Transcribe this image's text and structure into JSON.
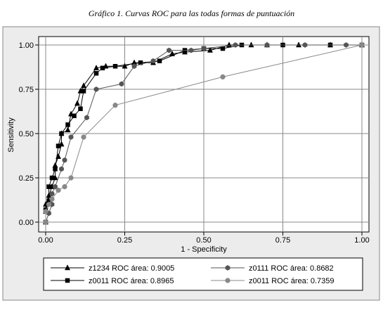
{
  "caption": "Gráfico 1. Curvas ROC para las todas formas de puntuación",
  "chart_data": {
    "type": "line",
    "xlabel": "1 - Specificity",
    "ylabel": "Sensitivity",
    "xlim": [
      0,
      1
    ],
    "ylim": [
      0,
      1
    ],
    "x_ticks": [
      "0.00",
      "0.25",
      "0.50",
      "0.75",
      "1.00"
    ],
    "y_ticks": [
      "0.00",
      "0.25",
      "0.50",
      "0.75",
      "1.00"
    ],
    "grid": true,
    "legend_position": "bottom",
    "series": [
      {
        "name": "z1234 ROC área: 0.9005",
        "color": "#000000",
        "marker": "triangle",
        "points": [
          [
            0,
            0
          ],
          [
            0,
            0.06
          ],
          [
            0,
            0.1
          ],
          [
            0.01,
            0.15
          ],
          [
            0.02,
            0.2
          ],
          [
            0.03,
            0.25
          ],
          [
            0.03,
            0.32
          ],
          [
            0.04,
            0.37
          ],
          [
            0.05,
            0.44
          ],
          [
            0.05,
            0.5
          ],
          [
            0.07,
            0.52
          ],
          [
            0.08,
            0.61
          ],
          [
            0.1,
            0.67
          ],
          [
            0.11,
            0.74
          ],
          [
            0.12,
            0.77
          ],
          [
            0.16,
            0.87
          ],
          [
            0.19,
            0.88
          ],
          [
            0.25,
            0.88
          ],
          [
            0.28,
            0.9
          ],
          [
            0.34,
            0.9
          ],
          [
            0.4,
            0.95
          ],
          [
            0.44,
            0.96
          ],
          [
            0.52,
            0.97
          ],
          [
            0.58,
            1
          ],
          [
            0.65,
            1
          ],
          [
            0.7,
            1
          ],
          [
            0.8,
            1
          ],
          [
            0.9,
            1
          ],
          [
            1,
            1
          ]
        ]
      },
      {
        "name": "z0011 ROC área: 0.8965",
        "color": "#000000",
        "marker": "square",
        "points": [
          [
            0,
            0
          ],
          [
            0,
            0.07
          ],
          [
            0.01,
            0.12
          ],
          [
            0.01,
            0.2
          ],
          [
            0.02,
            0.25
          ],
          [
            0.03,
            0.3
          ],
          [
            0.04,
            0.43
          ],
          [
            0.05,
            0.5
          ],
          [
            0.07,
            0.55
          ],
          [
            0.09,
            0.6
          ],
          [
            0.11,
            0.64
          ],
          [
            0.12,
            0.74
          ],
          [
            0.16,
            0.84
          ],
          [
            0.18,
            0.87
          ],
          [
            0.22,
            0.88
          ],
          [
            0.3,
            0.9
          ],
          [
            0.36,
            0.91
          ],
          [
            0.44,
            0.97
          ],
          [
            0.5,
            0.98
          ],
          [
            0.56,
            0.98
          ],
          [
            0.62,
            1
          ],
          [
            0.75,
            1
          ],
          [
            0.9,
            1
          ],
          [
            1,
            1
          ]
        ]
      },
      {
        "name": "z0111 ROC área: 0.8682",
        "color": "#555555",
        "marker": "hexagon",
        "points": [
          [
            0,
            0
          ],
          [
            0.01,
            0.05
          ],
          [
            0.02,
            0.1
          ],
          [
            0.02,
            0.16
          ],
          [
            0.03,
            0.2
          ],
          [
            0.05,
            0.3
          ],
          [
            0.06,
            0.35
          ],
          [
            0.08,
            0.48
          ],
          [
            0.13,
            0.59
          ],
          [
            0.16,
            0.75
          ],
          [
            0.24,
            0.78
          ],
          [
            0.28,
            0.88
          ],
          [
            0.34,
            0.91
          ],
          [
            0.39,
            0.97
          ],
          [
            0.46,
            0.97
          ],
          [
            0.5,
            0.98
          ],
          [
            0.6,
            1
          ],
          [
            0.7,
            1
          ],
          [
            0.82,
            1
          ],
          [
            0.95,
            1
          ],
          [
            1,
            1
          ]
        ]
      },
      {
        "name": "z0011 ROC área: 0.7359",
        "color": "#888888",
        "marker": "circle",
        "points": [
          [
            0,
            0
          ],
          [
            0,
            0.06
          ],
          [
            0.01,
            0.1
          ],
          [
            0.02,
            0.13
          ],
          [
            0.04,
            0.18
          ],
          [
            0.06,
            0.2
          ],
          [
            0.08,
            0.25
          ],
          [
            0.12,
            0.48
          ],
          [
            0.22,
            0.66
          ],
          [
            0.56,
            0.82
          ],
          [
            1,
            1
          ]
        ]
      }
    ]
  }
}
